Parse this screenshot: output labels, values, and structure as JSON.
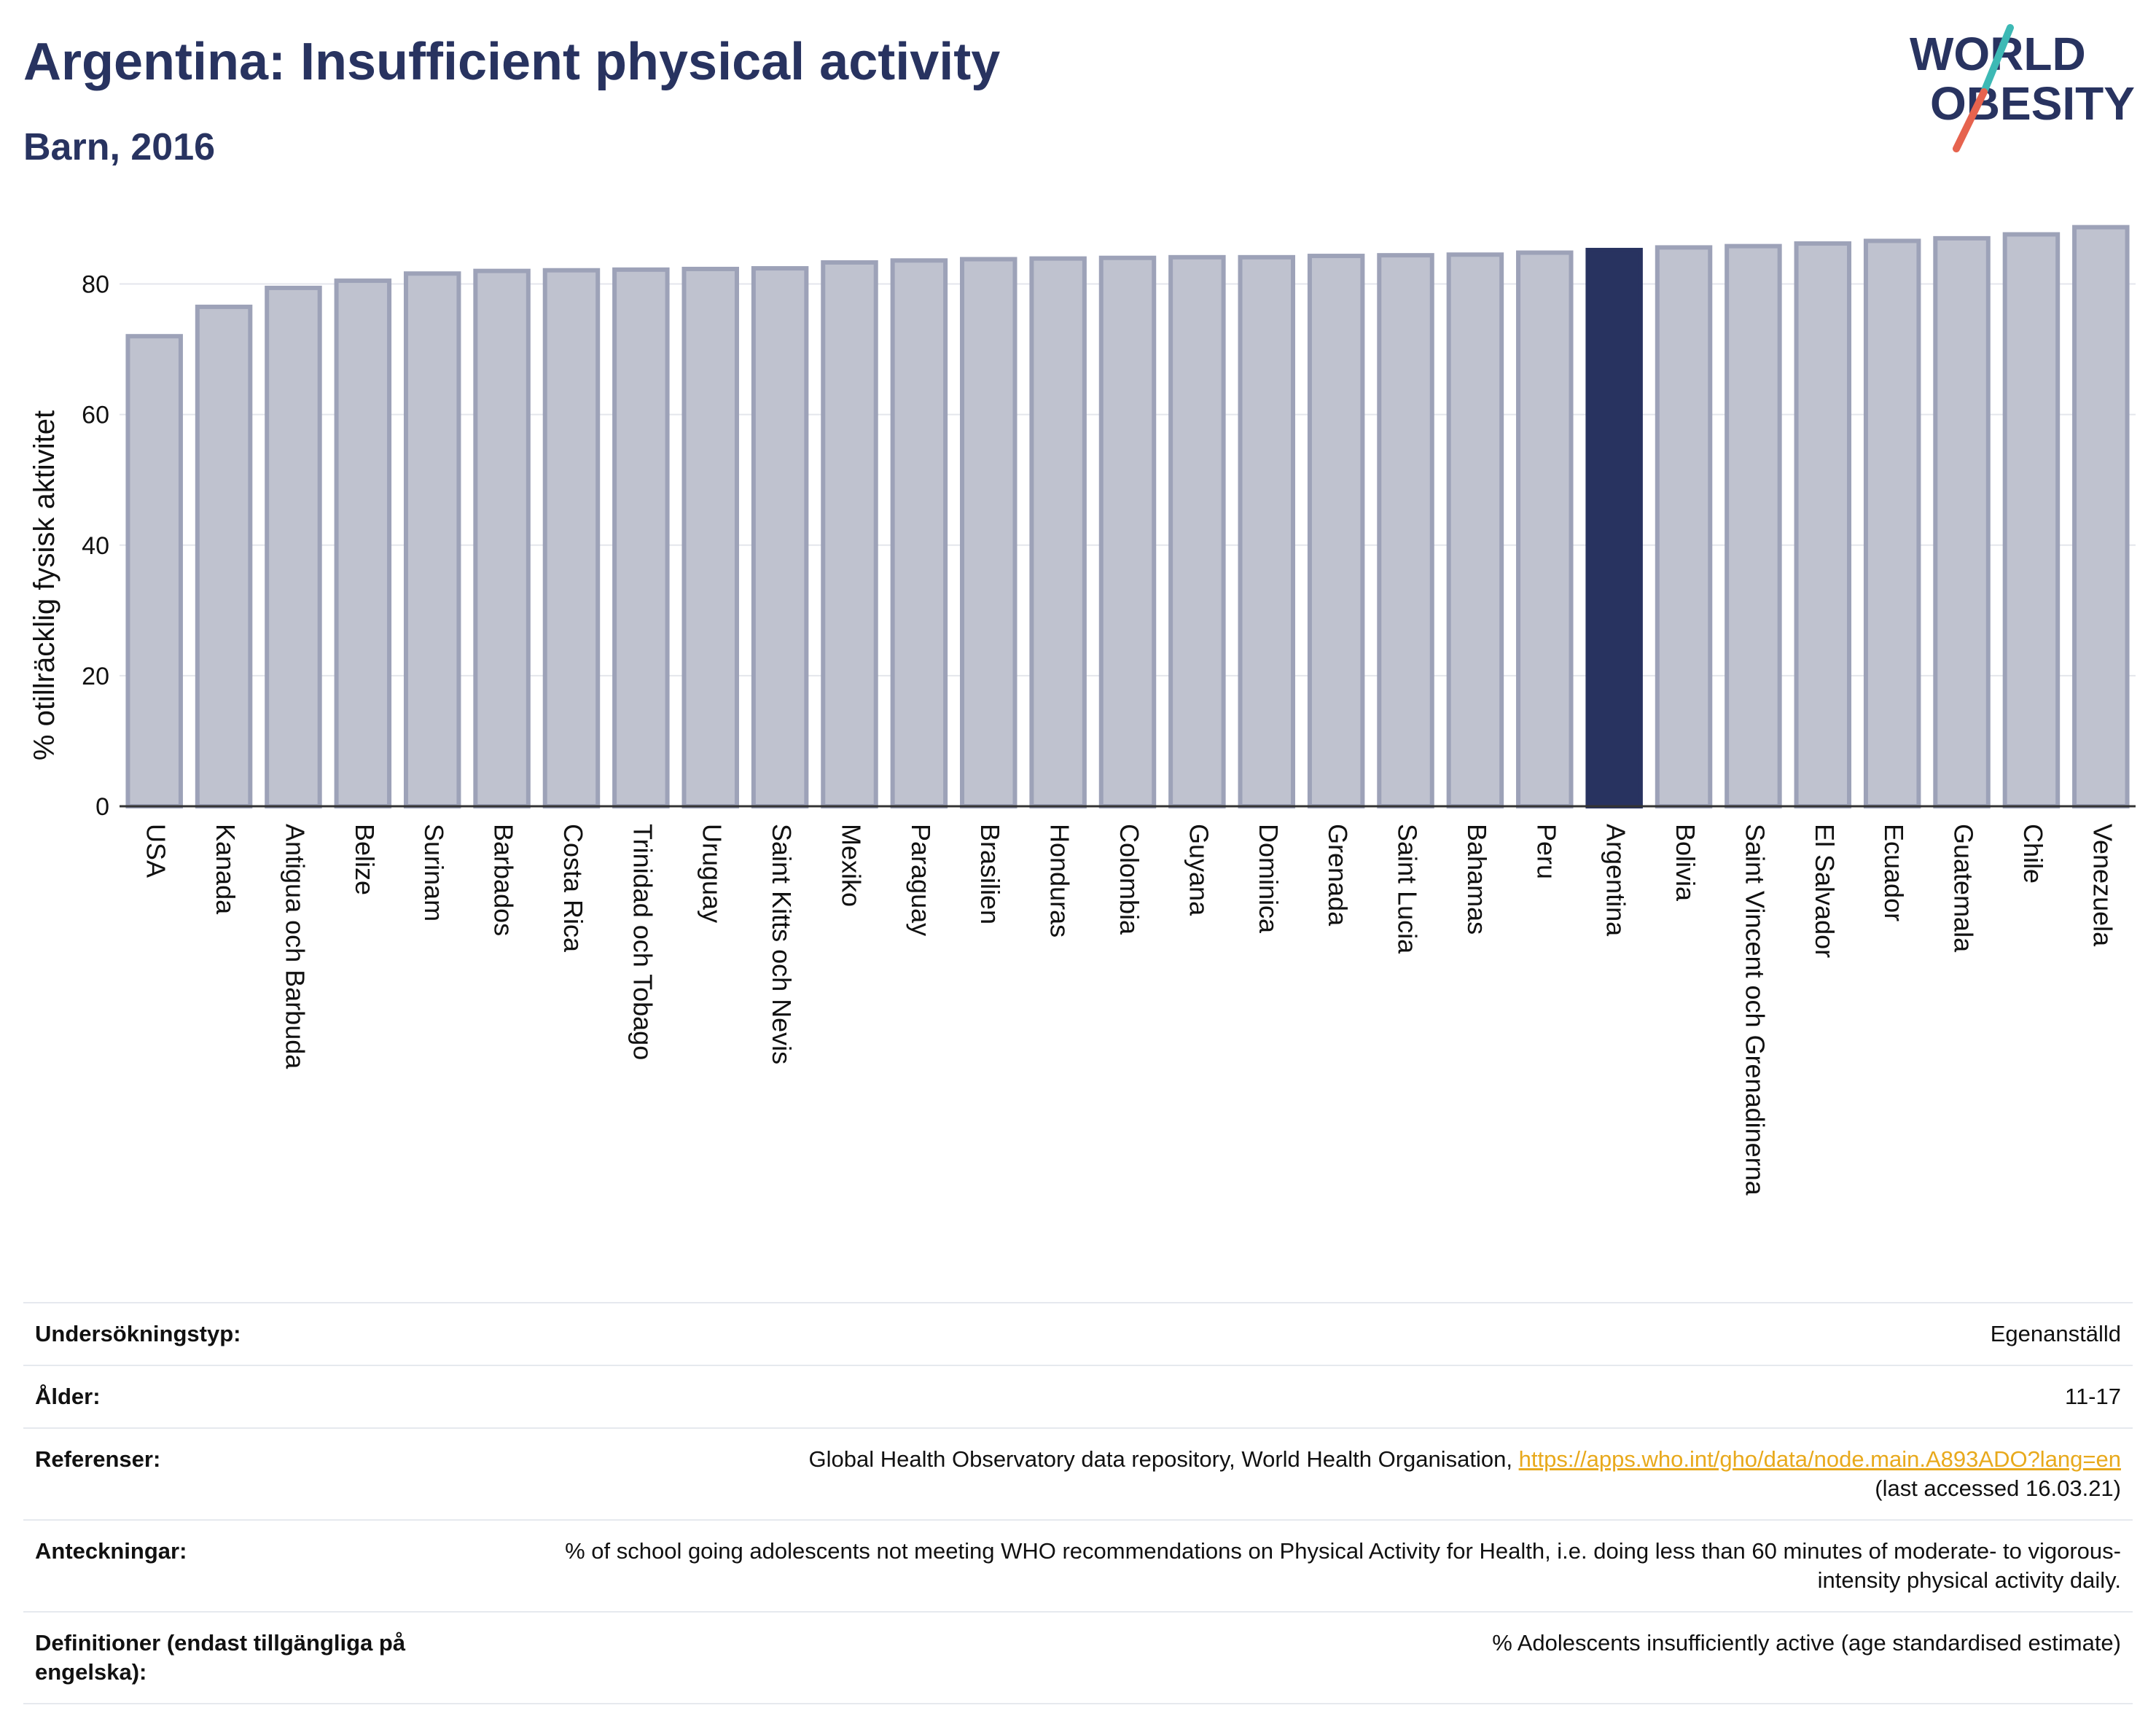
{
  "header": {
    "title": "Argentina: Insufficient physical activity",
    "subtitle": "Barn, 2016"
  },
  "logo": {
    "line1": "WORLD",
    "line2": "OBESITY",
    "accent_colors": [
      "#3db9b5",
      "#e6634e"
    ]
  },
  "colors": {
    "highlight": "#283360",
    "bar": "#bfc2cf",
    "bar_edge": "#9da2b8",
    "link": "#e8a91c"
  },
  "chart_data": {
    "type": "bar",
    "title": "Argentina: Insufficient physical activity",
    "subtitle": "Barn, 2016",
    "xlabel": "",
    "ylabel": "% otillräcklig fysisk aktivitet",
    "ylim": [
      0,
      90
    ],
    "yticks": [
      0,
      20,
      40,
      60,
      80
    ],
    "grid": true,
    "highlight": "Argentina",
    "categories": [
      "USA",
      "Kanada",
      "Antigua och Barbuda",
      "Belize",
      "Surinam",
      "Barbados",
      "Costa Rica",
      "Trinidad och Tobago",
      "Uruguay",
      "Saint Kitts och Nevis",
      "Mexiko",
      "Paraguay",
      "Brasilien",
      "Honduras",
      "Colombia",
      "Guyana",
      "Dominica",
      "Grenada",
      "Saint Lucia",
      "Bahamas",
      "Peru",
      "Argentina",
      "Bolivia",
      "Saint Vincent och Grenadinerna",
      "El Salvador",
      "Ecuador",
      "Guatemala",
      "Chile",
      "Venezuela"
    ],
    "values": [
      72.0,
      76.5,
      79.4,
      80.5,
      81.6,
      82.0,
      82.1,
      82.2,
      82.3,
      82.4,
      83.3,
      83.6,
      83.8,
      83.9,
      84.0,
      84.1,
      84.1,
      84.3,
      84.4,
      84.5,
      84.8,
      85.2,
      85.6,
      85.8,
      86.2,
      86.6,
      87.0,
      87.6,
      88.7
    ]
  },
  "info": [
    {
      "label": "Undersökningstyp:",
      "value": "Egenanställd"
    },
    {
      "label": "Ålder:",
      "value": "11-17"
    },
    {
      "label": "Referenser:",
      "value_prefix": "Global Health Observatory data repository, World Health Organisation, ",
      "link": "https://apps.who.int/gho/data/node.main.A893ADO?lang=en",
      "value_suffix": "(last accessed 16.03.21)"
    },
    {
      "label": "Anteckningar:",
      "value": "% of school going adolescents not meeting WHO recommendations on Physical Activity for Health, i.e. doing less than 60 minutes of moderate- to vigorous-intensity physical activity daily."
    },
    {
      "label": "Definitioner (endast tillgängliga på engelska):",
      "value": "% Adolescents insufficiently active (age standardised estimate)"
    }
  ]
}
